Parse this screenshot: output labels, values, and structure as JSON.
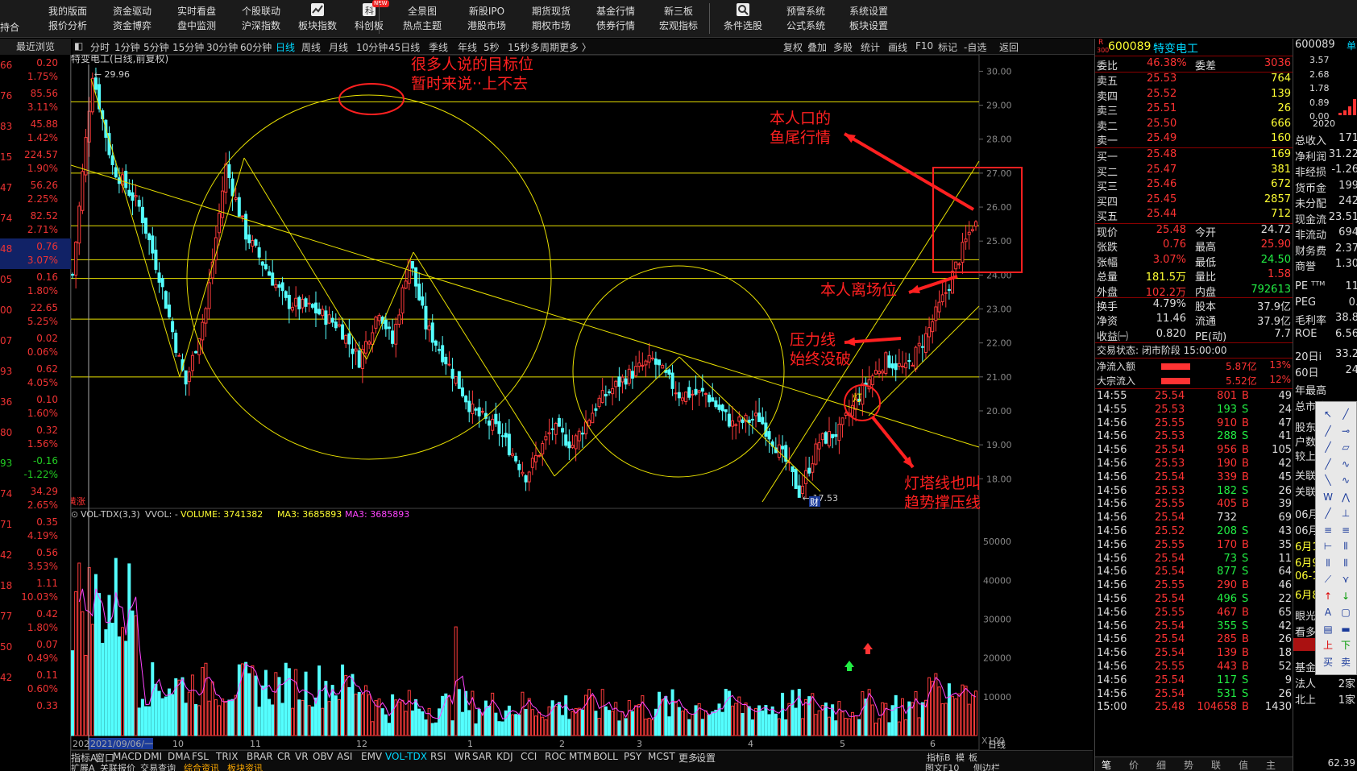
{
  "menubar": [
    {
      "top": "我的版面",
      "bottom": "报价分析"
    },
    {
      "top": "资金驱动",
      "bottom": "资金博弈"
    },
    {
      "top": "实时看盘",
      "bottom": "盘中监测"
    },
    {
      "top": "个股联动",
      "bottom": "沪深指数"
    },
    {
      "top": "",
      "bottom": "板块指数",
      "icon": "trend-icon"
    },
    {
      "top": "",
      "bottom": "科创板",
      "icon": "kechuang-icon",
      "badge": "NEW"
    },
    {
      "top": "全景图",
      "bottom": "热点主题"
    },
    {
      "top": "新股IPO",
      "bottom": "港股市场"
    },
    {
      "top": "期货现货",
      "bottom": "期权市场"
    },
    {
      "top": "基金行情",
      "bottom": "债券行情"
    },
    {
      "top": "新三板",
      "bottom": "宏观指标"
    },
    {
      "top": "",
      "bottom": "条件选股",
      "icon": "search-icon"
    },
    {
      "top": "预警系统",
      "bottom": "公式系统"
    },
    {
      "top": "系统设置",
      "bottom": "板块设置"
    }
  ],
  "menu_left_label": "持合",
  "left_panel": {
    "title": "最近浏览",
    "rows": [
      {
        "code": "66",
        "val": "0.20",
        "pct": "1.75%"
      },
      {
        "code": "76",
        "val": "85.56",
        "pct": "3.11%"
      },
      {
        "code": "83",
        "val": "45.88",
        "pct": "1.42%"
      },
      {
        "code": "15",
        "val": "224.57",
        "pct": "1.90%"
      },
      {
        "code": "47",
        "val": "56.26",
        "pct": "2.25%"
      },
      {
        "code": "74",
        "val": "82.52",
        "pct": "2.71%"
      },
      {
        "code": "48",
        "val": "0.76",
        "pct": "3.07%",
        "selected": true
      },
      {
        "code": "05",
        "val": "0.16",
        "pct": "1.80%"
      },
      {
        "code": "00",
        "val": "22.65",
        "pct": "5.25%"
      },
      {
        "code": "07",
        "val": "0.02",
        "pct": "0.06%"
      },
      {
        "code": "93",
        "val": "0.62",
        "pct": "4.05%"
      },
      {
        "code": "36",
        "val": "0.10",
        "pct": "1.60%"
      },
      {
        "code": "80",
        "val": "0.32",
        "pct": "1.56%"
      },
      {
        "code": "93",
        "val": "-0.16",
        "pct": "-1.22%",
        "neg": true
      },
      {
        "code": "74",
        "val": "34.29",
        "pct": "2.65%"
      },
      {
        "code": "71",
        "val": "0.35",
        "pct": "4.19%"
      },
      {
        "code": "42",
        "val": "0.56",
        "pct": "3.53%"
      },
      {
        "code": "18",
        "val": "1.11",
        "pct": "10.03%"
      },
      {
        "code": "77",
        "val": "0.42",
        "pct": "1.80%"
      },
      {
        "code": "50",
        "val": "0.07",
        "pct": "0.49%"
      },
      {
        "code": "42",
        "val": "0.11",
        "pct": "0.60%"
      },
      {
        "code": "",
        "val": "0.33",
        "pct": ""
      }
    ]
  },
  "period_bar": {
    "items": [
      "分时",
      "1分钟",
      "5分钟",
      "15分钟",
      "30分钟",
      "60分钟",
      "日线",
      "周线",
      "月线",
      "10分钟",
      "45日线",
      "季线",
      "年线",
      "5秒",
      "15秒",
      "多周期",
      "更多 〉"
    ],
    "active": "日线",
    "right_items": [
      "复权",
      "叠加",
      "多股",
      "统计",
      "画线",
      "F10",
      "标记",
      "-自选",
      "返回"
    ]
  },
  "chart": {
    "title": "特变电工(日线,前复权)",
    "high_label": "29.96",
    "low_label": "17.53",
    "price_axis": [
      "30.00",
      "29.00",
      "28.00",
      "27.00",
      "26.00",
      "25.00",
      "24.00",
      "23.00",
      "22.00",
      "21.00",
      "20.00",
      "19.00",
      "18.00"
    ],
    "volume_header": {
      "name": "VOL-TDX(3,3)",
      "vvol": "VVOL: -",
      "volume": "VOLUME: 3741382",
      "ma3a": "MA3: 3685893",
      "ma3b": "MA3: 3685893"
    },
    "volume_axis": [
      "50000",
      "40000",
      "30000",
      "20000",
      "10000"
    ],
    "vol_unit": "X100",
    "date_labels": [
      "2021",
      "2021/09/06/一",
      "10",
      "11",
      "12",
      "1",
      "2",
      "3",
      "4",
      "5",
      "6"
    ],
    "tag_cai": "财",
    "tag_left": "黄涨",
    "light_tag": "灯",
    "annotations": {
      "target": [
        "很多人说的目标位",
        "暂时来说··上不去"
      ],
      "fishtail": [
        "本人口的",
        "鱼尾行情"
      ],
      "leave": "本人离场位",
      "pressure": [
        "压力线",
        "始终没破"
      ],
      "lighthouse": [
        "灯塔线也叫",
        "趋势撑压线"
      ]
    }
  },
  "chart_data": {
    "type": "candlestick",
    "title": "特变电工(日线,前复权)",
    "ylim": [
      17.2,
      30.2
    ],
    "annotated_high": 29.96,
    "annotated_low": 17.53,
    "horizontal_levels": [
      29.1,
      27.0,
      25.45,
      24.45,
      23.9,
      22.7,
      21.0
    ],
    "close_trend": [
      [
        0,
        24.0
      ],
      [
        6,
        29.96
      ],
      [
        12,
        27.2
      ],
      [
        20,
        26.0
      ],
      [
        26,
        24.0
      ],
      [
        32,
        21.5
      ],
      [
        34,
        20.8
      ],
      [
        40,
        23.0
      ],
      [
        46,
        27.2
      ],
      [
        52,
        25.2
      ],
      [
        58,
        24.2
      ],
      [
        64,
        23.2
      ],
      [
        72,
        23.0
      ],
      [
        80,
        22.5
      ],
      [
        86,
        21.5
      ],
      [
        92,
        23.0
      ],
      [
        96,
        22.0
      ],
      [
        101,
        24.5
      ],
      [
        106,
        22.5
      ],
      [
        112,
        21.5
      ],
      [
        120,
        20.0
      ],
      [
        128,
        19.4
      ],
      [
        136,
        18.1
      ],
      [
        144,
        19.5
      ],
      [
        150,
        19.0
      ],
      [
        158,
        20.3
      ],
      [
        166,
        21.0
      ],
      [
        174,
        21.5
      ],
      [
        182,
        20.5
      ],
      [
        190,
        20.5
      ],
      [
        198,
        19.6
      ],
      [
        206,
        19.8
      ],
      [
        214,
        18.5
      ],
      [
        218,
        17.6
      ],
      [
        224,
        19.1
      ],
      [
        230,
        19.4
      ],
      [
        238,
        20.8
      ],
      [
        244,
        21.5
      ],
      [
        250,
        21.2
      ],
      [
        256,
        22.2
      ],
      [
        262,
        23.5
      ],
      [
        266,
        24.5
      ],
      [
        270,
        25.48
      ]
    ],
    "volume_ylim": [
      0,
      55000
    ]
  },
  "quote_panel": {
    "code": "600089",
    "name": "特变电工",
    "r_tag": "R",
    "r_num": "300",
    "weibi_label": "委比",
    "weibi": "46.38%",
    "weicha_label": "委差",
    "weicha": "3036",
    "sells": [
      {
        "label": "卖五",
        "price": "25.53",
        "vol": "764"
      },
      {
        "label": "卖四",
        "price": "25.52",
        "vol": "139"
      },
      {
        "label": "卖三",
        "price": "25.51",
        "vol": "26"
      },
      {
        "label": "卖二",
        "price": "25.50",
        "vol": "666"
      },
      {
        "label": "卖一",
        "price": "25.49",
        "vol": "160"
      }
    ],
    "buys": [
      {
        "label": "买一",
        "price": "25.48",
        "vol": "169"
      },
      {
        "label": "买二",
        "price": "25.47",
        "vol": "381"
      },
      {
        "label": "买三",
        "price": "25.46",
        "vol": "672"
      },
      {
        "label": "买四",
        "price": "25.45",
        "vol": "2857"
      },
      {
        "label": "买五",
        "price": "25.44",
        "vol": "712"
      }
    ],
    "stats": [
      {
        "l1": "现价",
        "v1": "25.48",
        "l2": "今开",
        "v2": "24.72",
        "c1": "red",
        "c2": "wht"
      },
      {
        "l1": "张跌",
        "v1": "0.76",
        "l2": "最高",
        "v2": "25.90",
        "c1": "red",
        "c2": "red"
      },
      {
        "l1": "张幅",
        "v1": "3.07%",
        "l2": "最低",
        "v2": "24.50",
        "c1": "red",
        "c2": "green"
      },
      {
        "l1": "总量",
        "v1": "181.5万",
        "l2": "量比",
        "v2": "1.58",
        "c1": "yel",
        "c2": "red"
      },
      {
        "l1": "外盘",
        "v1": "102.2万",
        "l2": "内盘",
        "v2": "792613",
        "c1": "red",
        "c2": "green"
      },
      {
        "l1": "换手",
        "v1": "4.79%",
        "l2": "股本",
        "v2": "37.9亿",
        "c1": "wht",
        "c2": "wht"
      },
      {
        "l1": "净资",
        "v1": "11.46",
        "l2": "流通",
        "v2": "37.9亿",
        "c1": "wht",
        "c2": "wht"
      },
      {
        "l1": "收益㈠",
        "v1": "0.820",
        "l2": "PE(动)",
        "v2": "7.7",
        "c1": "wht",
        "c2": "wht"
      }
    ],
    "trade_status": "交易状态: 闭市阶段 15:00:00",
    "flows": [
      {
        "label": "净流入额",
        "val": "5.87亿",
        "pct": "13%"
      },
      {
        "label": "大宗流入",
        "val": "5.52亿",
        "pct": "12%"
      }
    ],
    "ticks": [
      {
        "t": "14:55",
        "p": "25.54",
        "v": "801",
        "s": "B",
        "n": "49"
      },
      {
        "t": "14:55",
        "p": "25.53",
        "v": "193",
        "s": "S",
        "n": "24"
      },
      {
        "t": "14:56",
        "p": "25.55",
        "v": "910",
        "s": "B",
        "n": "47"
      },
      {
        "t": "14:56",
        "p": "25.53",
        "v": "288",
        "s": "S",
        "n": "41"
      },
      {
        "t": "14:56",
        "p": "25.54",
        "v": "956",
        "s": "B",
        "n": "105"
      },
      {
        "t": "14:56",
        "p": "25.53",
        "v": "190",
        "s": "B",
        "n": "42"
      },
      {
        "t": "14:56",
        "p": "25.54",
        "v": "339",
        "s": "B",
        "n": "45"
      },
      {
        "t": "14:56",
        "p": "25.53",
        "v": "182",
        "s": "S",
        "n": "26"
      },
      {
        "t": "14:56",
        "p": "25.55",
        "v": "405",
        "s": "B",
        "n": "39"
      },
      {
        "t": "14:56",
        "p": "25.54",
        "v": "732",
        "s": "",
        "n": "69"
      },
      {
        "t": "14:56",
        "p": "25.52",
        "v": "208",
        "s": "S",
        "n": "43"
      },
      {
        "t": "14:56",
        "p": "25.55",
        "v": "170",
        "s": "B",
        "n": "35"
      },
      {
        "t": "14:56",
        "p": "25.54",
        "v": "73",
        "s": "S",
        "n": "11"
      },
      {
        "t": "14:56",
        "p": "25.54",
        "v": "877",
        "s": "S",
        "n": "64"
      },
      {
        "t": "14:56",
        "p": "25.55",
        "v": "290",
        "s": "B",
        "n": "46"
      },
      {
        "t": "14:56",
        "p": "25.54",
        "v": "496",
        "s": "S",
        "n": "22"
      },
      {
        "t": "14:56",
        "p": "25.55",
        "v": "467",
        "s": "B",
        "n": "65"
      },
      {
        "t": "14:56",
        "p": "25.54",
        "v": "355",
        "s": "S",
        "n": "42"
      },
      {
        "t": "14:56",
        "p": "25.54",
        "v": "285",
        "s": "B",
        "n": "26"
      },
      {
        "t": "14:56",
        "p": "25.54",
        "v": "139",
        "s": "B",
        "n": "18"
      },
      {
        "t": "14:56",
        "p": "25.55",
        "v": "443",
        "s": "B",
        "n": "52"
      },
      {
        "t": "14:56",
        "p": "25.54",
        "v": "117",
        "s": "S",
        "n": "9"
      },
      {
        "t": "14:56",
        "p": "25.54",
        "v": "531",
        "s": "S",
        "n": "26"
      },
      {
        "t": "15:00",
        "p": "25.48",
        "v": "104658",
        "s": "B",
        "n": "1430"
      }
    ],
    "tabs": [
      "笔",
      "价",
      "细",
      "势",
      "联",
      "值",
      "主"
    ]
  },
  "far_panel": {
    "code": "600089",
    "bars_vals": [
      "3.57",
      "2.68",
      "1.78",
      "0.89",
      "0.00"
    ],
    "year": "2020",
    "unit_tag": "单",
    "fin": [
      {
        "l": "总收入",
        "v": "171"
      },
      {
        "l": "净利润",
        "v": "31.22"
      },
      {
        "l": "非经损",
        "v": "-1.26"
      },
      {
        "l": "货币金",
        "v": "199"
      },
      {
        "l": "未分配",
        "v": "242"
      },
      {
        "l": "现金流",
        "v": "23.51"
      },
      {
        "l": "非流动",
        "v": "694"
      },
      {
        "l": "财务费",
        "v": "2.37"
      },
      {
        "l": "商誉",
        "v": "1.30"
      }
    ],
    "ratios": [
      {
        "l": "PE ᵀᵀᴹ",
        "v": "11"
      },
      {
        "l": "PEG",
        "v": "0."
      },
      {
        "l": "毛利率",
        "v": "38.8"
      },
      {
        "l": "ROE",
        "v": "6.56"
      }
    ],
    "days": [
      {
        "l": "20日i",
        "v": "33.2"
      },
      {
        "l": "60日",
        "v": "24"
      }
    ],
    "misc": [
      "年最高",
      "总市值",
      "股东",
      "户数",
      "较上期",
      "关联板",
      "关联板",
      "06月0",
      "06月0",
      "6月10",
      "6月9日",
      "06-13",
      "6月8日",
      "眼光",
      "看多"
    ],
    "holders": [
      {
        "l": "基金",
        "v": "72家"
      },
      {
        "l": "法人",
        "v": "2家"
      },
      {
        "l": "北上",
        "v": "1家"
      }
    ],
    "misc_bottom": "62.39"
  },
  "bottom_bar": [
    "扩展A",
    "关联报价",
    "交易查询",
    "综合资讯",
    "板块资讯"
  ],
  "bottom_bar_mid": [
    "指标A",
    "窗口",
    "MACD",
    "DMI",
    "DMA",
    "FSL",
    "TRIX",
    "BRAR",
    "CR",
    "VR",
    "OBV",
    "ASI",
    "EMV",
    "VOL-TDX",
    "RSI",
    "WR",
    "SAR",
    "KDJ",
    "CCI",
    "ROC",
    "MTM",
    "BOLL",
    "PSY",
    "MCST",
    "更多",
    "设置"
  ],
  "bottom_bar_right": [
    "指标B",
    "模",
    "板",
    "日线",
    "图文F10",
    "侧边栏"
  ]
}
